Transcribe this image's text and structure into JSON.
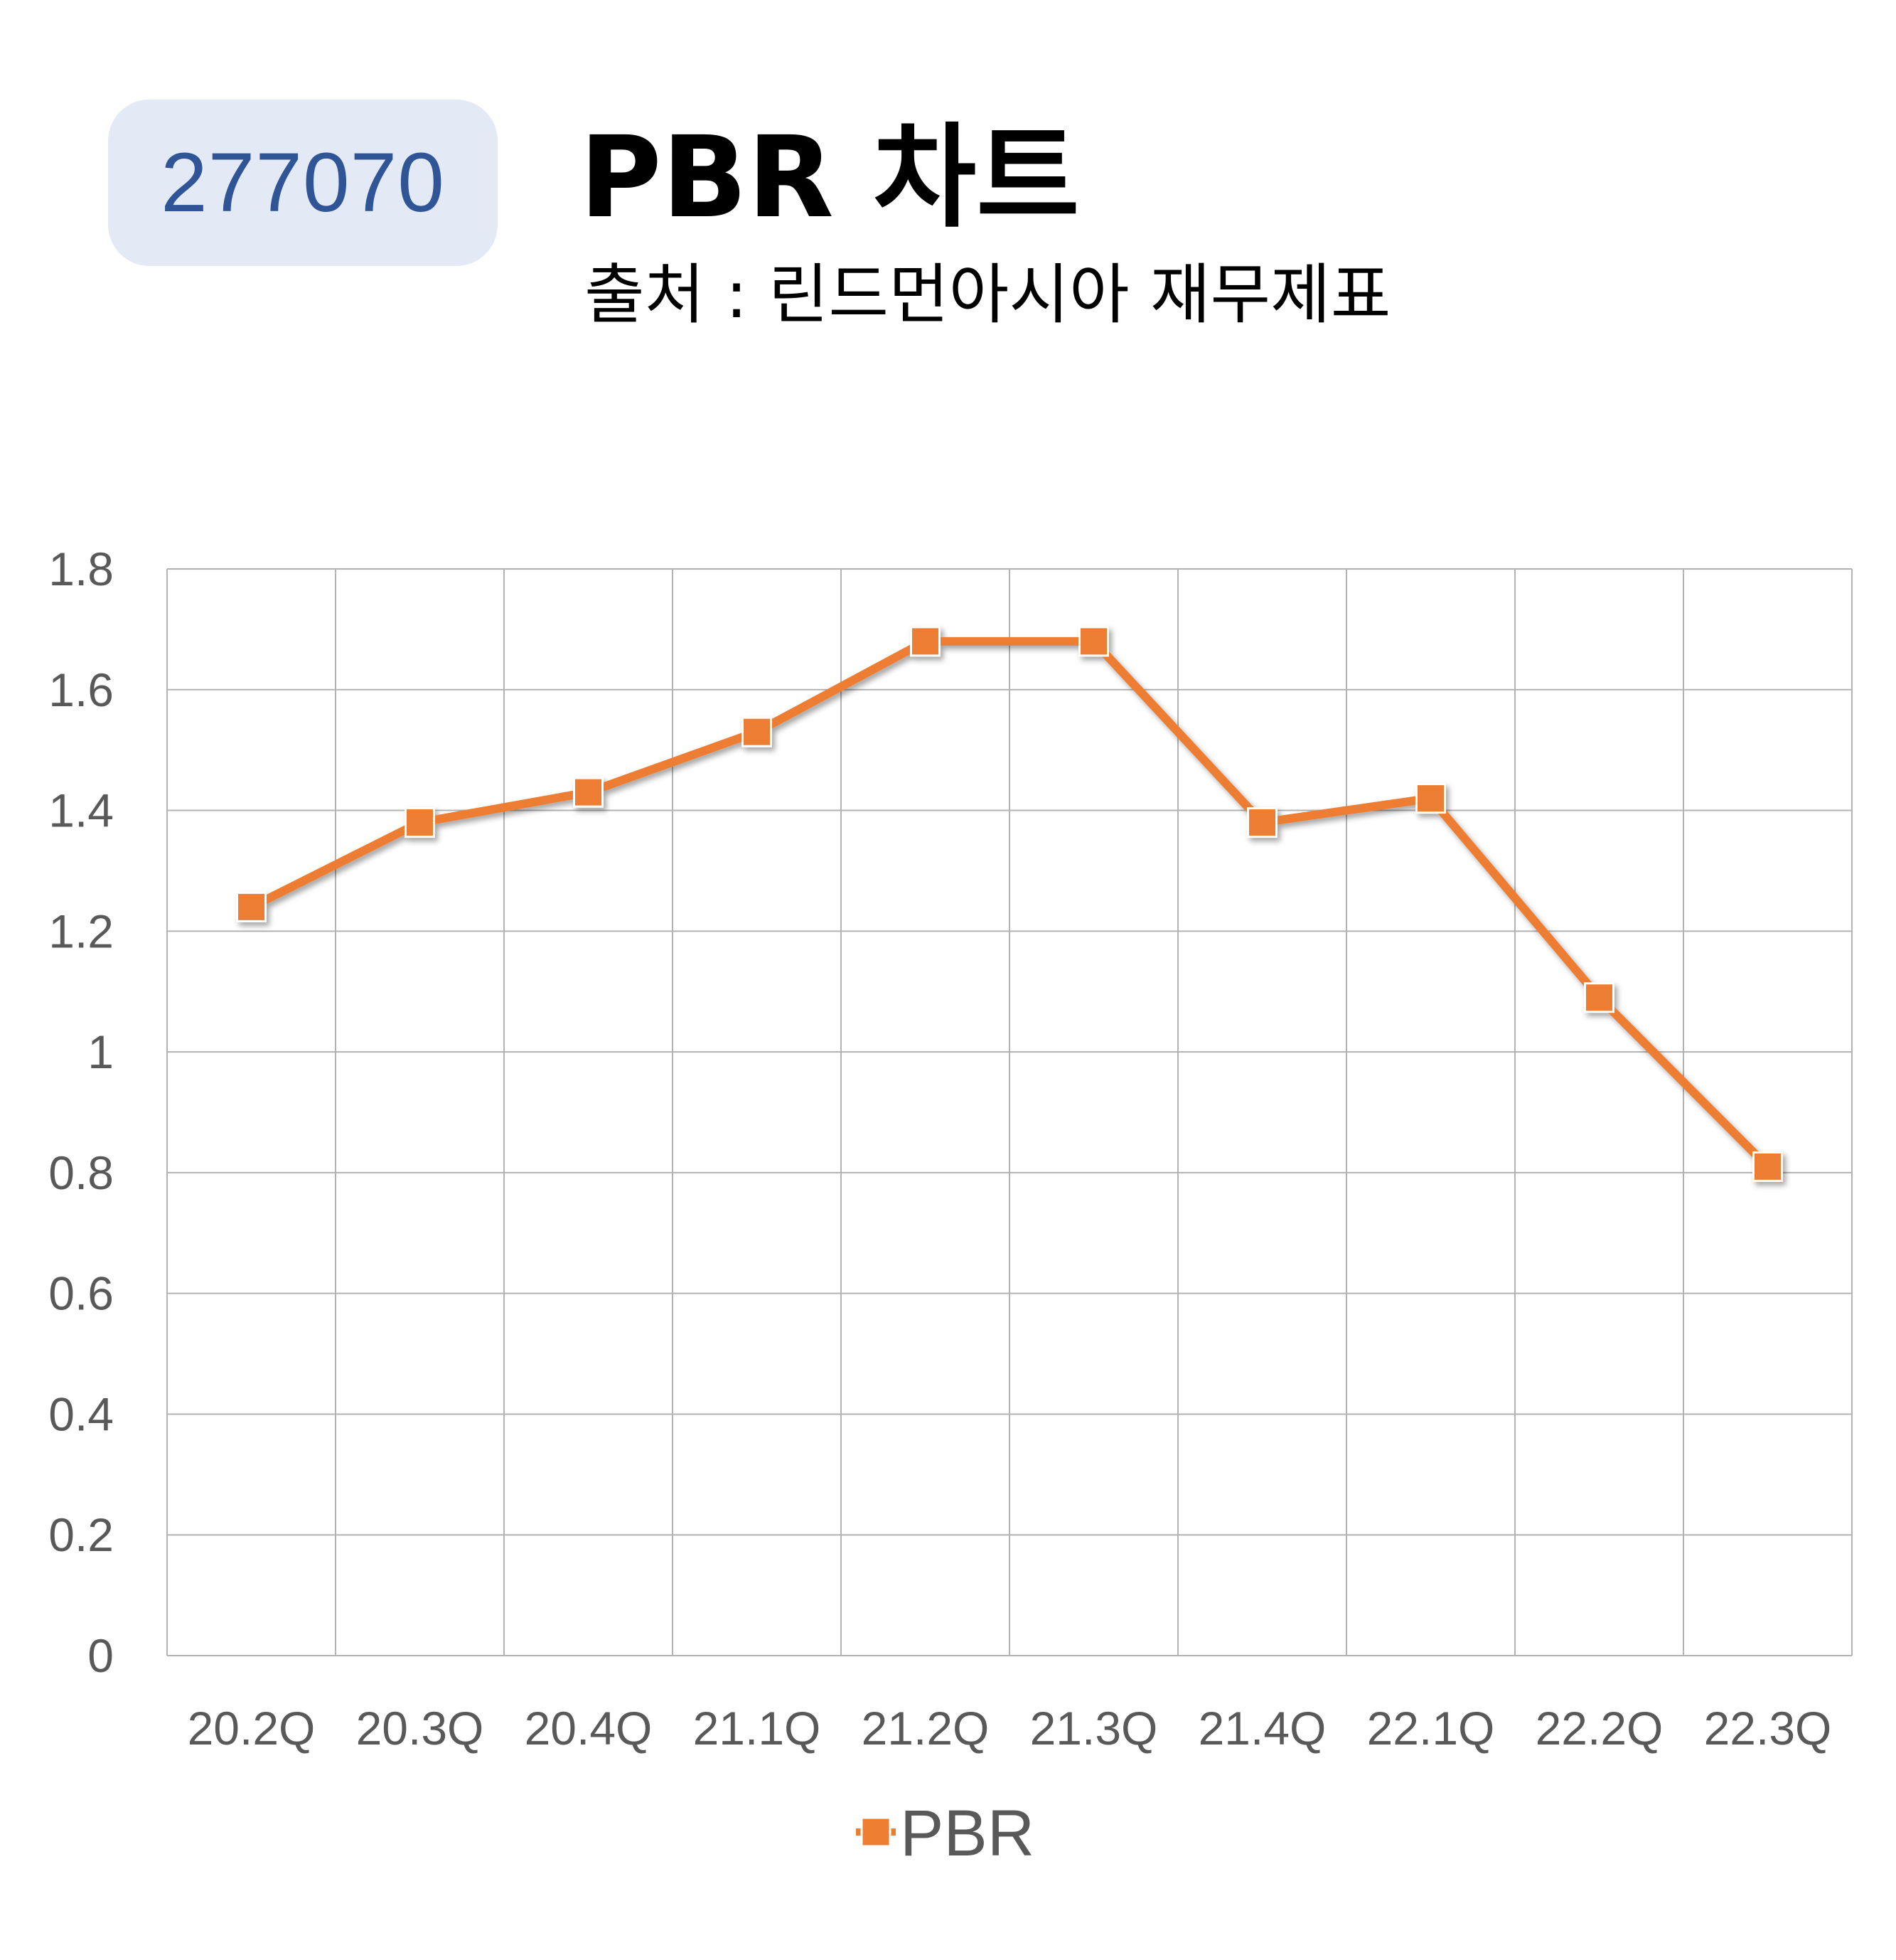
{
  "header": {
    "code": "277070",
    "title": "PBR 차트",
    "subtitle": "출처 : 린드먼아시아 재무제표"
  },
  "colors": {
    "badge_bg": "#e3e9f5",
    "badge_text": "#2f5597",
    "series": "#ed7d31",
    "grid": "#b3b3b3",
    "tick_text": "#595959"
  },
  "chart_data": {
    "type": "line",
    "categories": [
      "20.2Q",
      "20.3Q",
      "20.4Q",
      "21.1Q",
      "21.2Q",
      "21.3Q",
      "21.4Q",
      "22.1Q",
      "22.2Q",
      "22.3Q"
    ],
    "series": [
      {
        "name": "PBR",
        "values": [
          1.24,
          1.38,
          1.43,
          1.53,
          1.68,
          1.68,
          1.38,
          1.42,
          1.09,
          0.81
        ],
        "marker": "square"
      }
    ],
    "yticks": [
      "0",
      "0.2",
      "0.4",
      "0.6",
      "0.8",
      "1",
      "1.2",
      "1.4",
      "1.6",
      "1.8"
    ],
    "ylim": [
      0,
      1.8
    ],
    "grid": true,
    "legend": "bottom"
  }
}
